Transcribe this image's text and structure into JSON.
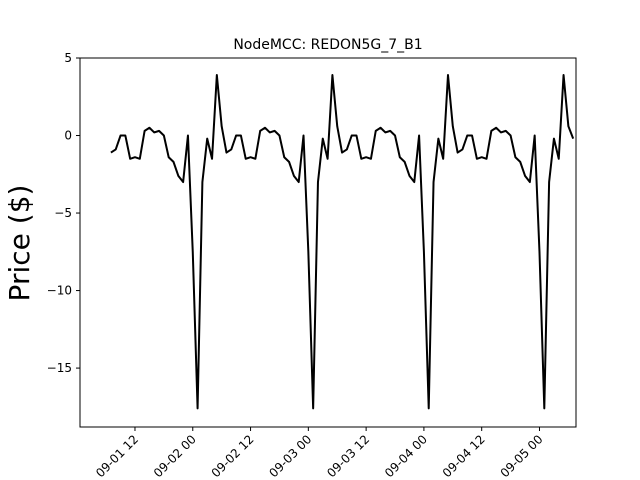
{
  "chart_data": {
    "type": "line",
    "title": "NodeMCC: REDON5G_7_B1",
    "xlabel": "",
    "ylabel": "Price ($)",
    "ylim": [
      -18.8,
      5
    ],
    "xlim": [
      "2020-09-01 00:35",
      "2020-09-05 07:35"
    ],
    "grid": false,
    "line_color": "#000000",
    "yticks": [
      5,
      0,
      -5,
      -10,
      -15
    ],
    "ytick_labels": [
      "5",
      "0",
      "−5",
      "−10",
      "−15"
    ],
    "xticks": [
      "2020-09-01 12:00",
      "2020-09-02 00:00",
      "2020-09-02 12:00",
      "2020-09-03 00:00",
      "2020-09-03 12:00",
      "2020-09-04 00:00",
      "2020-09-04 12:00",
      "2020-09-05 00:00"
    ],
    "xtick_labels": [
      "09-01 12",
      "09-02 00",
      "09-02 12",
      "09-03 00",
      "09-03 12",
      "09-04 00",
      "09-04 12",
      "09-05 00"
    ],
    "x": [
      "2020-09-01 07:00",
      "2020-09-01 08:00",
      "2020-09-01 09:00",
      "2020-09-01 10:00",
      "2020-09-01 11:00",
      "2020-09-01 12:00",
      "2020-09-01 13:00",
      "2020-09-01 14:00",
      "2020-09-01 15:00",
      "2020-09-01 16:00",
      "2020-09-01 17:00",
      "2020-09-01 18:00",
      "2020-09-01 19:00",
      "2020-09-01 20:00",
      "2020-09-01 21:00",
      "2020-09-01 22:00",
      "2020-09-01 23:00",
      "2020-09-02 00:00",
      "2020-09-02 01:00",
      "2020-09-02 02:00",
      "2020-09-02 03:00",
      "2020-09-02 04:00",
      "2020-09-02 05:00",
      "2020-09-02 06:00",
      "2020-09-02 07:00",
      "2020-09-02 08:00",
      "2020-09-02 09:00",
      "2020-09-02 10:00",
      "2020-09-02 11:00",
      "2020-09-02 12:00",
      "2020-09-02 13:00",
      "2020-09-02 14:00",
      "2020-09-02 15:00",
      "2020-09-02 16:00",
      "2020-09-02 17:00",
      "2020-09-02 18:00",
      "2020-09-02 19:00",
      "2020-09-02 20:00",
      "2020-09-02 21:00",
      "2020-09-02 22:00",
      "2020-09-02 23:00",
      "2020-09-03 00:00",
      "2020-09-03 01:00",
      "2020-09-03 02:00",
      "2020-09-03 03:00",
      "2020-09-03 04:00",
      "2020-09-03 05:00",
      "2020-09-03 06:00",
      "2020-09-03 07:00",
      "2020-09-03 08:00",
      "2020-09-03 09:00",
      "2020-09-03 10:00",
      "2020-09-03 11:00",
      "2020-09-03 12:00",
      "2020-09-03 13:00",
      "2020-09-03 14:00",
      "2020-09-03 15:00",
      "2020-09-03 16:00",
      "2020-09-03 17:00",
      "2020-09-03 18:00",
      "2020-09-03 19:00",
      "2020-09-03 20:00",
      "2020-09-03 21:00",
      "2020-09-03 22:00",
      "2020-09-03 23:00",
      "2020-09-04 00:00",
      "2020-09-04 01:00",
      "2020-09-04 02:00",
      "2020-09-04 03:00",
      "2020-09-04 04:00",
      "2020-09-04 05:00",
      "2020-09-04 06:00",
      "2020-09-04 07:00",
      "2020-09-04 08:00",
      "2020-09-04 09:00",
      "2020-09-04 10:00",
      "2020-09-04 11:00",
      "2020-09-04 12:00",
      "2020-09-04 13:00",
      "2020-09-04 14:00",
      "2020-09-04 15:00",
      "2020-09-04 16:00",
      "2020-09-04 17:00",
      "2020-09-04 18:00",
      "2020-09-04 19:00",
      "2020-09-04 20:00",
      "2020-09-04 21:00",
      "2020-09-04 22:00",
      "2020-09-04 23:00",
      "2020-09-05 00:00",
      "2020-09-05 01:00",
      "2020-09-05 02:00",
      "2020-09-05 03:00",
      "2020-09-05 04:00",
      "2020-09-05 05:00",
      "2020-09-05 06:00",
      "2020-09-05 07:00"
    ],
    "series": [
      {
        "name": "",
        "values": [
          -1.1,
          -0.9,
          0.0,
          0.0,
          -1.5,
          -1.4,
          -1.5,
          0.3,
          0.5,
          0.2,
          0.3,
          0.0,
          -1.4,
          -1.7,
          -2.6,
          -3.0,
          0.0,
          -7.5,
          -17.6,
          -3.0,
          -0.2,
          -1.5,
          3.9,
          0.6,
          -1.1,
          -0.9,
          0.0,
          0.0,
          -1.5,
          -1.4,
          -1.5,
          0.3,
          0.5,
          0.2,
          0.3,
          0.0,
          -1.4,
          -1.7,
          -2.6,
          -3.0,
          0.0,
          -7.5,
          -17.6,
          -3.0,
          -0.2,
          -1.5,
          3.9,
          0.6,
          -1.1,
          -0.9,
          0.0,
          0.0,
          -1.5,
          -1.4,
          -1.5,
          0.3,
          0.5,
          0.2,
          0.3,
          0.0,
          -1.4,
          -1.7,
          -2.6,
          -3.0,
          0.0,
          -7.5,
          -17.6,
          -3.0,
          -0.2,
          -1.5,
          3.9,
          0.6,
          -1.1,
          -0.9,
          0.0,
          0.0,
          -1.5,
          -1.4,
          -1.5,
          0.3,
          0.5,
          0.2,
          0.3,
          0.0,
          -1.4,
          -1.7,
          -2.6,
          -3.0,
          0.0,
          -7.5,
          -17.6,
          -3.0,
          -0.2,
          -1.5,
          3.9,
          0.6,
          -0.2
        ]
      }
    ]
  }
}
